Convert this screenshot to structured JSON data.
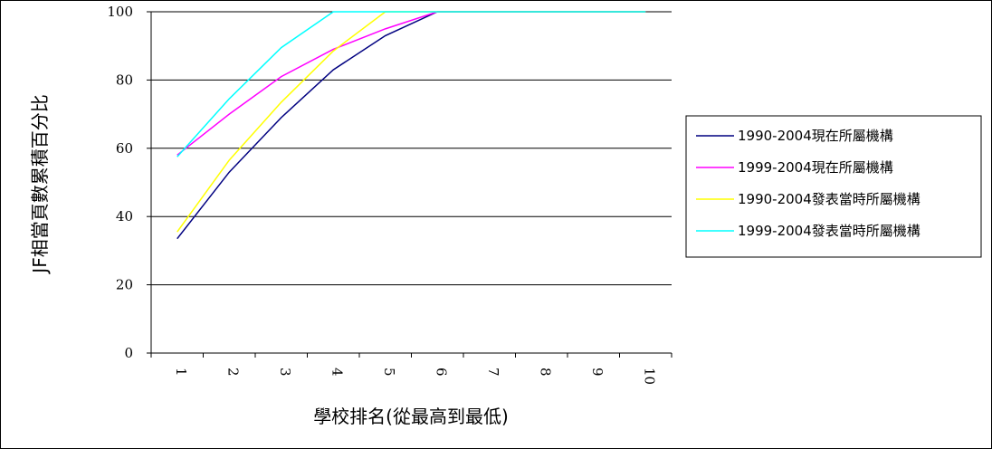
{
  "chart_data": {
    "type": "line",
    "title": "",
    "xlabel": "學校排名(從最高到最低)",
    "ylabel": "JF相當頁數累積百分比",
    "categories": [
      "1",
      "2",
      "3",
      "4",
      "5",
      "6",
      "7",
      "8",
      "9",
      "10"
    ],
    "ylim": [
      0,
      100
    ],
    "yticks": [
      0,
      20,
      40,
      60,
      80,
      100
    ],
    "grid": true,
    "legend_position": "right",
    "series": [
      {
        "name": "1990-2004現在所屬機構",
        "color": "#000080",
        "values": [
          33.5,
          53,
          69,
          83,
          93,
          100,
          100,
          100,
          100,
          100
        ]
      },
      {
        "name": "1999-2004現在所屬機構",
        "color": "#ff00ff",
        "values": [
          58,
          70,
          81,
          89,
          95,
          100,
          100,
          100,
          100,
          100
        ]
      },
      {
        "name": "1990-2004發表當時所屬機構",
        "color": "#ffff00",
        "values": [
          35.5,
          56.5,
          73.5,
          88.5,
          100,
          100,
          100,
          100,
          100,
          100
        ]
      },
      {
        "name": "1999-2004發表當時所屬機構",
        "color": "#00ffff",
        "values": [
          57.5,
          74.5,
          89.5,
          100,
          100,
          100,
          100,
          100,
          100,
          100
        ]
      }
    ]
  }
}
